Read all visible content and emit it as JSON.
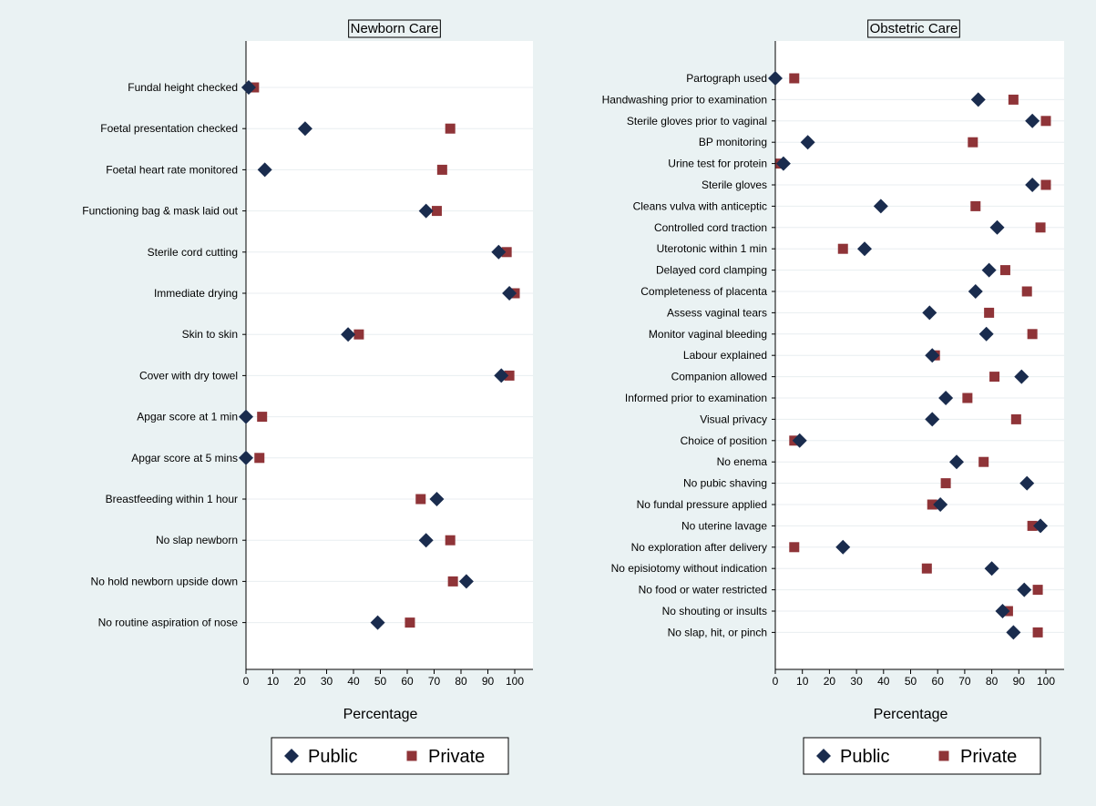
{
  "chart_data": [
    {
      "type": "scatter",
      "title": "Newborn Care",
      "xlabel": "Percentage",
      "xlim": [
        0,
        100
      ],
      "xticks": [
        0,
        10,
        20,
        30,
        40,
        50,
        60,
        70,
        80,
        90,
        100
      ],
      "grid": true,
      "legend": "bottom",
      "categories": [
        "Fundal height checked",
        "Foetal presentation checked",
        "Foetal heart rate monitored",
        "Functioning bag & mask laid out",
        "Sterile cord cutting",
        "Immediate drying",
        "Skin to skin",
        "Cover with dry towel",
        "Apgar score at 1 min",
        "Apgar score at 5 mins",
        "Breastfeeding within 1 hour",
        "No slap newborn",
        "No hold newborn upside down",
        "No routine aspiration of nose"
      ],
      "series": [
        {
          "name": "Public",
          "marker": "diamond",
          "color": "#1a2c4e",
          "values": [
            1,
            22,
            7,
            67,
            94,
            98,
            38,
            95,
            0,
            0,
            71,
            67,
            82,
            49
          ]
        },
        {
          "name": "Private",
          "marker": "square",
          "color": "#8f3438",
          "values": [
            3,
            76,
            73,
            71,
            97,
            100,
            42,
            98,
            6,
            5,
            65,
            76,
            77,
            61
          ]
        }
      ]
    },
    {
      "type": "scatter",
      "title": "Obstetric Care",
      "xlabel": "Percentage",
      "xlim": [
        0,
        100
      ],
      "xticks": [
        0,
        10,
        20,
        30,
        40,
        50,
        60,
        70,
        80,
        90,
        100
      ],
      "grid": true,
      "legend": "bottom",
      "categories": [
        "Partograph used",
        "Handwashing prior to examination",
        "Sterile gloves prior to vaginal",
        "BP monitoring",
        "Urine test for protein",
        "Sterile gloves",
        "Cleans vulva with anticeptic",
        "Controlled cord traction",
        "Uterotonic within 1 min",
        "Delayed cord clamping",
        "Completeness of placenta",
        "Assess vaginal tears",
        "Monitor vaginal bleeding",
        "Labour explained",
        "Companion allowed",
        "Informed prior to examination",
        "Visual privacy",
        "Choice of position",
        "No enema",
        "No pubic shaving",
        "No fundal pressure applied",
        "No uterine lavage",
        "No exploration after delivery",
        "No episiotomy without indication",
        "No food or water restricted",
        "No shouting or insults",
        "No slap, hit, or pinch"
      ],
      "series": [
        {
          "name": "Public",
          "marker": "diamond",
          "color": "#1a2c4e",
          "values": [
            0,
            75,
            95,
            12,
            3,
            95,
            39,
            82,
            33,
            79,
            74,
            57,
            78,
            58,
            91,
            63,
            58,
            9,
            67,
            93,
            61,
            98,
            25,
            80,
            92,
            84,
            88
          ]
        },
        {
          "name": "Private",
          "marker": "square",
          "color": "#8f3438",
          "values": [
            7,
            88,
            100,
            73,
            2,
            100,
            74,
            98,
            25,
            85,
            93,
            79,
            95,
            59,
            81,
            71,
            89,
            7,
            77,
            63,
            58,
            95,
            7,
            56,
            97,
            86,
            97
          ]
        }
      ]
    }
  ]
}
